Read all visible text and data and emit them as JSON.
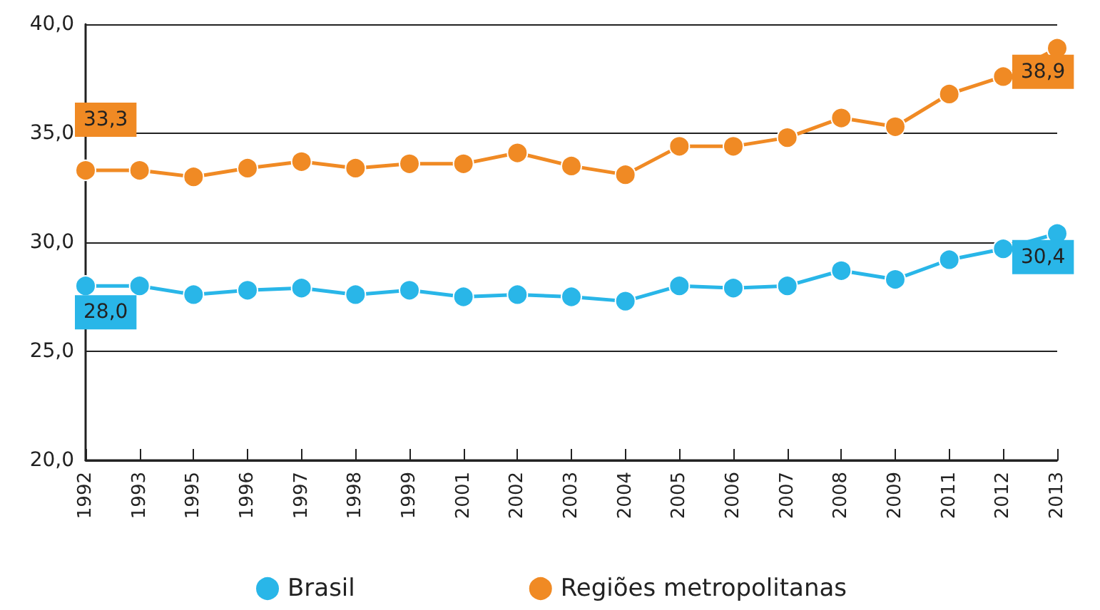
{
  "chart_data": {
    "type": "line",
    "categories": [
      "1992",
      "1993",
      "1995",
      "1996",
      "1997",
      "1998",
      "1999",
      "2001",
      "2002",
      "2003",
      "2004",
      "2005",
      "2006",
      "2007",
      "2008",
      "2009",
      "2011",
      "2012",
      "2013"
    ],
    "series": [
      {
        "name": "Brasil",
        "color": "#29b6e8",
        "values": [
          28.0,
          28.0,
          27.6,
          27.8,
          27.9,
          27.6,
          27.8,
          27.5,
          27.6,
          27.5,
          27.3,
          28.0,
          27.9,
          28.0,
          28.7,
          28.3,
          29.2,
          29.7,
          30.4
        ],
        "value_labels": [
          "28,0",
          null,
          null,
          null,
          null,
          null,
          null,
          null,
          null,
          null,
          null,
          null,
          null,
          null,
          null,
          null,
          null,
          null,
          "30,4"
        ]
      },
      {
        "name": "Regiões metropolitanas",
        "color": "#f08a24",
        "values": [
          33.3,
          33.3,
          33.0,
          33.4,
          33.7,
          33.4,
          33.6,
          33.6,
          34.1,
          33.5,
          33.1,
          34.4,
          34.4,
          34.8,
          35.7,
          35.3,
          36.8,
          37.6,
          38.9
        ],
        "value_labels": [
          "33,3",
          null,
          null,
          null,
          null,
          null,
          null,
          null,
          null,
          null,
          null,
          null,
          null,
          null,
          null,
          null,
          null,
          null,
          "38,9"
        ]
      }
    ],
    "ylim": [
      20,
      40
    ],
    "yticks": [
      {
        "value": 20,
        "label": "20,0"
      },
      {
        "value": 25,
        "label": "25,0"
      },
      {
        "value": 30,
        "label": "30,0"
      },
      {
        "value": 35,
        "label": "35,0"
      },
      {
        "value": 40,
        "label": "40,0"
      }
    ],
    "grid": "y",
    "legend": "bottom",
    "marker": "circle",
    "line_style": "solid"
  }
}
